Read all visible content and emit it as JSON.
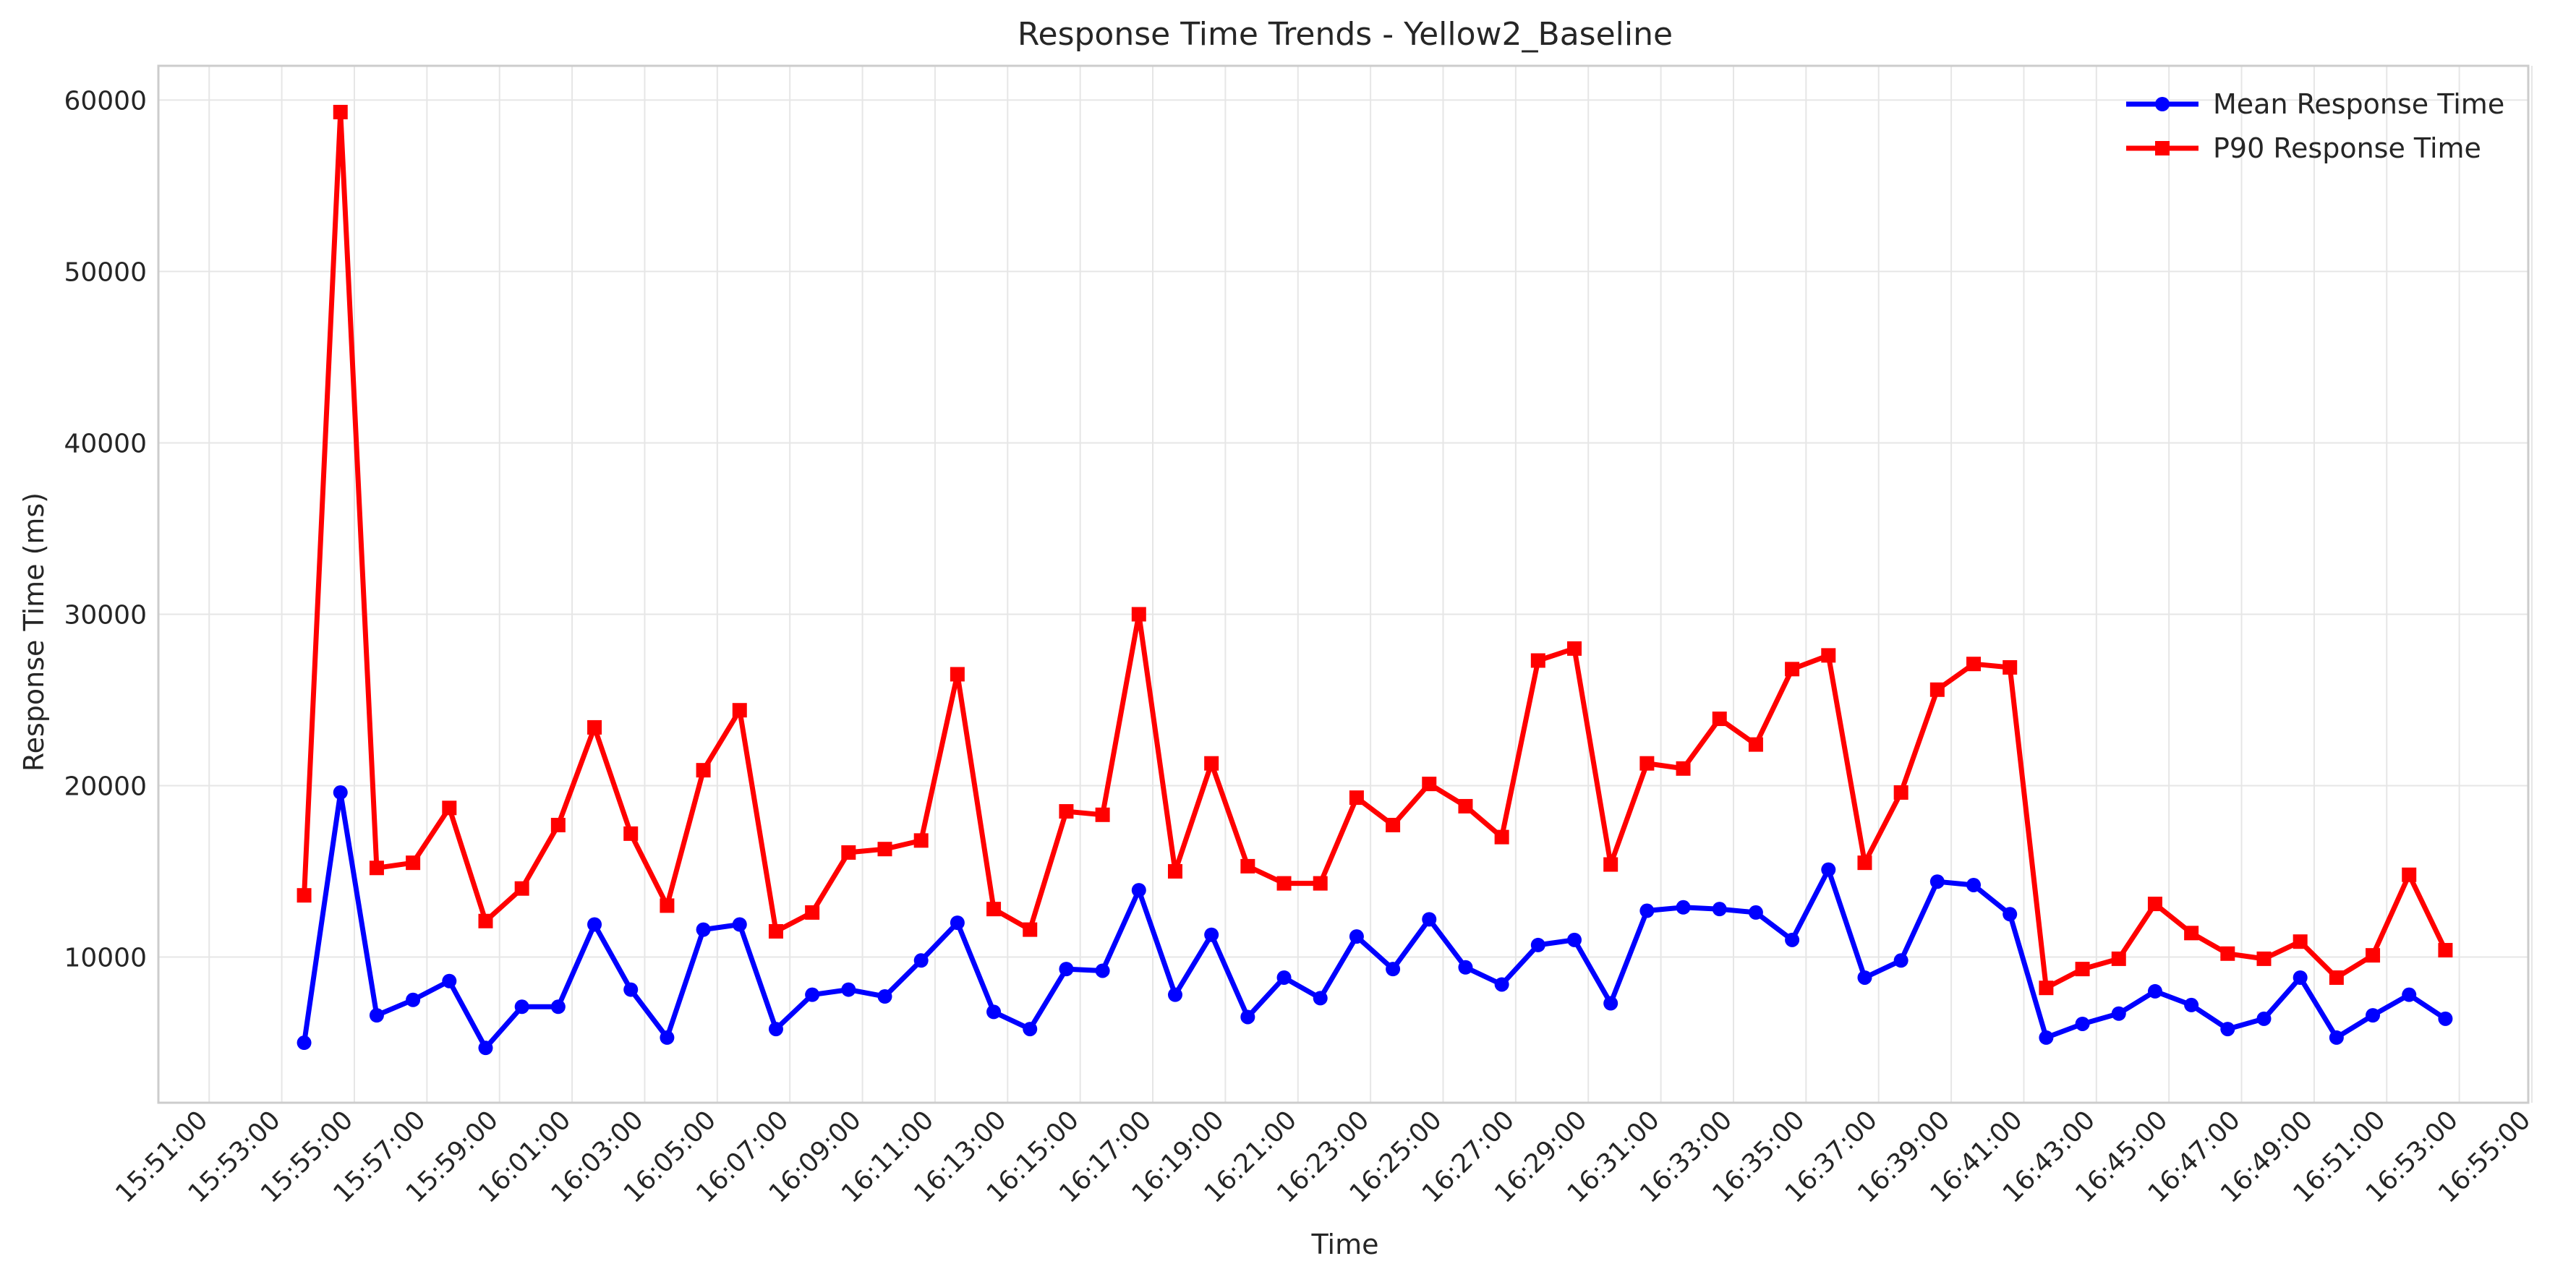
{
  "chart_data": {
    "type": "line",
    "title": "Response Time Trends - Yellow2_Baseline",
    "xlabel": "Time",
    "ylabel": "Response Time (ms)",
    "grid": true,
    "legend_position": "top-right",
    "ylim": [
      1500,
      62000
    ],
    "yticks": [
      10000,
      20000,
      30000,
      40000,
      50000,
      60000
    ],
    "xlim_minutes": [
      -3.4,
      61.9
    ],
    "xticks": [
      "15:51:00",
      "15:53:00",
      "15:55:00",
      "15:57:00",
      "15:59:00",
      "16:01:00",
      "16:03:00",
      "16:05:00",
      "16:07:00",
      "16:09:00",
      "16:11:00",
      "16:13:00",
      "16:15:00",
      "16:17:00",
      "16:19:00",
      "16:21:00",
      "16:23:00",
      "16:25:00",
      "16:27:00",
      "16:29:00",
      "16:31:00",
      "16:33:00",
      "16:35:00",
      "16:37:00",
      "16:39:00",
      "16:41:00",
      "16:43:00",
      "16:45:00",
      "16:47:00",
      "16:49:00",
      "16:51:00",
      "16:53:00",
      "16:55:00"
    ],
    "x": [
      "15:53:37",
      "15:54:37",
      "15:55:37",
      "15:56:37",
      "15:57:37",
      "15:58:37",
      "15:59:37",
      "16:00:37",
      "16:01:37",
      "16:02:37",
      "16:03:37",
      "16:04:37",
      "16:05:37",
      "16:06:37",
      "16:07:37",
      "16:08:37",
      "16:09:37",
      "16:10:37",
      "16:11:37",
      "16:12:37",
      "16:13:37",
      "16:14:37",
      "16:15:37",
      "16:16:37",
      "16:17:37",
      "16:18:37",
      "16:19:37",
      "16:20:37",
      "16:21:37",
      "16:22:37",
      "16:23:37",
      "16:24:37",
      "16:25:37",
      "16:26:37",
      "16:27:37",
      "16:28:37",
      "16:29:37",
      "16:30:37",
      "16:31:37",
      "16:32:37",
      "16:33:37",
      "16:34:37",
      "16:35:37",
      "16:36:37",
      "16:37:37",
      "16:38:37",
      "16:39:37",
      "16:40:37",
      "16:41:37",
      "16:42:37",
      "16:43:37",
      "16:44:37",
      "16:45:37",
      "16:46:37",
      "16:47:37",
      "16:48:37",
      "16:49:37",
      "16:50:37",
      "16:51:37",
      "16:52:37"
    ],
    "series": [
      {
        "name": "Mean Response Time",
        "color": "#0000ff",
        "marker": "circle",
        "values": [
          5000,
          19600,
          6600,
          7500,
          8600,
          4700,
          7100,
          7100,
          11900,
          8100,
          5300,
          11600,
          11900,
          5800,
          7800,
          8100,
          7700,
          9800,
          12000,
          6800,
          5800,
          9300,
          9200,
          13900,
          7800,
          11300,
          6500,
          8800,
          7600,
          11200,
          9300,
          12200,
          9400,
          8400,
          10700,
          11000,
          7300,
          12700,
          12900,
          12800,
          12600,
          11000,
          15100,
          8800,
          9800,
          14400,
          14200,
          12500,
          5300,
          6100,
          6700,
          8000,
          7200,
          5800,
          6400,
          8800,
          5300,
          6600,
          7800,
          6400
        ]
      },
      {
        "name": "P90 Response Time",
        "color": "#ff0000",
        "marker": "square",
        "values": [
          13600,
          59300,
          15200,
          15500,
          18700,
          12100,
          14000,
          17700,
          23400,
          17200,
          13000,
          20900,
          24400,
          11500,
          12600,
          16100,
          16300,
          16800,
          26500,
          12800,
          11600,
          18500,
          18300,
          30000,
          15000,
          21300,
          15300,
          14300,
          14300,
          19300,
          17700,
          20100,
          18800,
          17000,
          27300,
          28000,
          15400,
          21300,
          21000,
          23900,
          22400,
          26800,
          27600,
          15500,
          19600,
          25600,
          27100,
          26900,
          8200,
          9300,
          9900,
          13100,
          11400,
          10200,
          9900,
          10900,
          8800,
          10100,
          14800,
          10400
        ]
      }
    ]
  }
}
